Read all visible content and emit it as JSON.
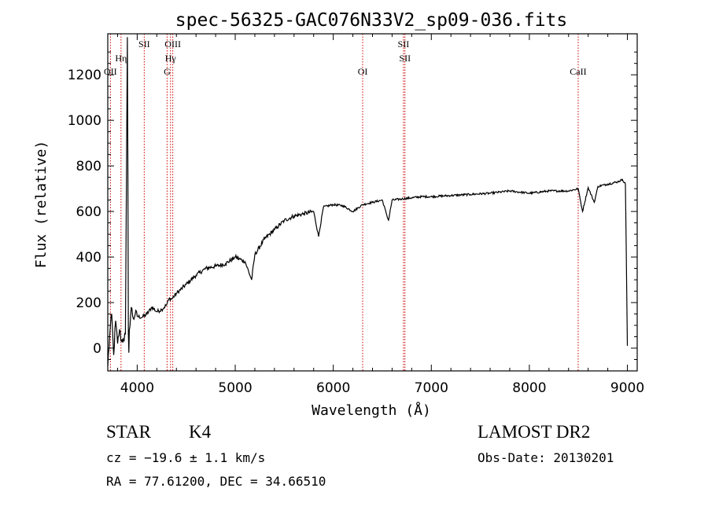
{
  "chart_data": {
    "type": "line",
    "title": "spec-56325-GAC076N33V2_sp09-036.fits",
    "xlabel": "Wavelength (Å)",
    "ylabel": "Flux (relative)",
    "xlim": [
      3700,
      9100
    ],
    "ylim": [
      -100,
      1380
    ],
    "xticks": [
      4000,
      5000,
      6000,
      7000,
      8000,
      9000
    ],
    "xtick_labels": [
      "4000",
      "5000",
      "6000",
      "7000",
      "8000",
      "9000"
    ],
    "yticks": [
      0,
      200,
      400,
      600,
      800,
      1000,
      1200
    ],
    "ytick_labels": [
      "0",
      "200",
      "400",
      "600",
      "800",
      "1000",
      "1200"
    ],
    "grid": false,
    "lines_color": "#cc0000",
    "series_color": "#000000",
    "spectral_lines": [
      {
        "wavelength": 3727,
        "labels": [
          "OII"
        ],
        "row": 3
      },
      {
        "wavelength": 3835,
        "labels": [
          "Hη"
        ],
        "row": 1
      },
      {
        "wavelength": 4072,
        "labels": [
          "SII"
        ],
        "row": 0
      },
      {
        "wavelength": 4305,
        "labels": [
          "G"
        ],
        "row": 3
      },
      {
        "wavelength": 4340,
        "labels": [
          "Hγ"
        ],
        "row": 2
      },
      {
        "wavelength": 4363,
        "labels": [
          "OIII"
        ],
        "row": 0
      },
      {
        "wavelength": 6300,
        "labels": [
          "OI"
        ],
        "row": 3
      },
      {
        "wavelength": 6716,
        "labels": [
          "SII"
        ],
        "row": 0
      },
      {
        "wavelength": 6731,
        "labels": [
          "SII"
        ],
        "row": 2
      },
      {
        "wavelength": 8498,
        "labels": [
          "CaII"
        ],
        "row": 3
      }
    ],
    "spectrum": {
      "x": [
        3700,
        3720,
        3740,
        3760,
        3780,
        3800,
        3820,
        3840,
        3860,
        3880,
        3900,
        3905,
        3910,
        3915,
        3920,
        3940,
        3960,
        3980,
        4000,
        4050,
        4100,
        4150,
        4200,
        4250,
        4300,
        4330,
        4350,
        4400,
        4500,
        4600,
        4700,
        4800,
        4900,
        5000,
        5100,
        5167,
        5200,
        5300,
        5400,
        5500,
        5600,
        5700,
        5800,
        5850,
        5900,
        6000,
        6100,
        6200,
        6300,
        6400,
        6500,
        6563,
        6600,
        6700,
        6800,
        6900,
        7000,
        7200,
        7400,
        7600,
        7800,
        8000,
        8200,
        8400,
        8498,
        8542,
        8600,
        8662,
        8700,
        8800,
        8900,
        8950,
        8980,
        9000
      ],
      "y": [
        -80,
        60,
        150,
        -30,
        120,
        20,
        80,
        30,
        40,
        60,
        1365,
        850,
        60,
        -20,
        80,
        180,
        130,
        150,
        140,
        135,
        150,
        180,
        160,
        170,
        190,
        220,
        215,
        240,
        280,
        320,
        350,
        360,
        370,
        400,
        380,
        300,
        410,
        480,
        520,
        560,
        580,
        590,
        600,
        490,
        620,
        630,
        625,
        600,
        630,
        640,
        650,
        560,
        650,
        655,
        660,
        665,
        665,
        670,
        675,
        680,
        690,
        680,
        690,
        690,
        700,
        600,
        705,
        640,
        710,
        720,
        730,
        740,
        720,
        10
      ]
    }
  },
  "footer": {
    "object_class": "STAR",
    "subclass": "K4",
    "redshift": "cz = −19.6 ± 1.1 km/s",
    "coords": "RA =  77.61200, DEC =  34.66510",
    "survey": "LAMOST DR2",
    "obs_date": "Obs-Date: 20130201"
  }
}
